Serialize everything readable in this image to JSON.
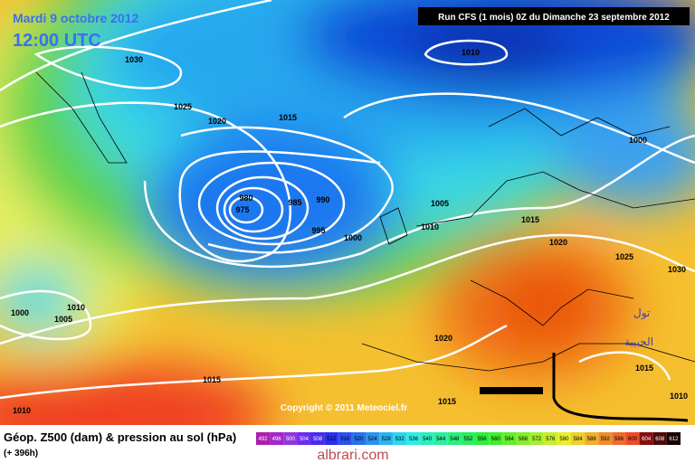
{
  "header": {
    "date": "Mardi 9 octobre 2012",
    "time": "12:00 UTC",
    "run": "Run CFS (1 mois) 0Z du Dimanche 23 septembre 2012"
  },
  "isobar_labels": [
    1030,
    1010,
    1025,
    1020,
    1015,
    1000,
    980,
    975,
    985,
    990,
    995,
    1000,
    1005,
    1010,
    1015,
    1020,
    1025,
    1030,
    1000,
    1005,
    1010,
    1020,
    1015,
    1015,
    1015,
    1010,
    1010
  ],
  "copyright": "Copyright © 2011 Meteociel.fr",
  "footer": {
    "title": "Géop. Z500 (dam) & pression au sol (hPa)",
    "lead": "(+ 396h)"
  },
  "color_scale": [
    492,
    496,
    500,
    504,
    508,
    512,
    516,
    520,
    524,
    528,
    532,
    536,
    540,
    544,
    548,
    552,
    556,
    560,
    564,
    568,
    572,
    576,
    580,
    584,
    588,
    592,
    596,
    600,
    604,
    608,
    612
  ],
  "annotations": [
    "تول",
    "الحبيبة"
  ],
  "watermark": "albrari.com"
}
